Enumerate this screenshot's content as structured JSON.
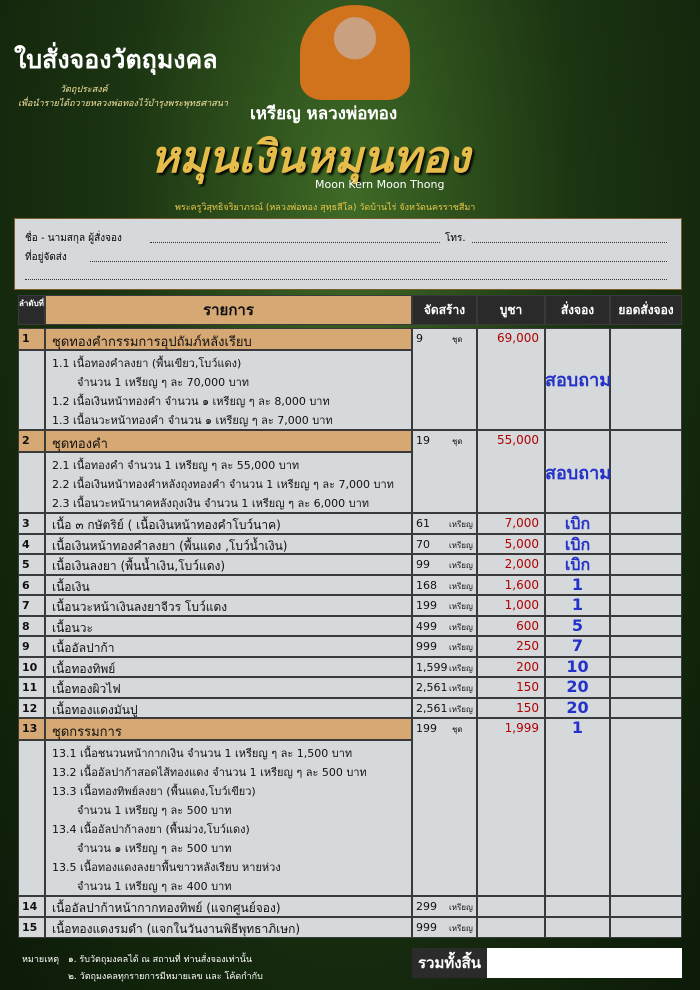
{
  "header": {
    "title": "ใบสั่งจองวัตถุมงคล",
    "purpose_label": "วัตถุประสงค์",
    "purpose": "เพื่อนำรายได้ถวายหลวงพ่อทองไว้บำรุงพระพุทธศาสนา",
    "coin_name": "เหรียญ หลวงพ่อทอง",
    "series_name": "หมุนเงินหมุนทอง",
    "english_name": "Moon Kern Moon Thong",
    "temple": "พระครูวิสุทธิจริยาภรณ์ (หลวงพ่อทอง สุทฺธสีโล) วัดบ้านไร่ จังหวัดนครราชสีมา"
  },
  "form": {
    "name_label": "ชื่อ - นามสกุล ผู้สั่งจอง",
    "phone_label": "โทร.",
    "address_label": "ที่อยู่จัดส่ง"
  },
  "table": {
    "columns": [
      "ลำดับที่",
      "รายการ",
      "จัดสร้าง",
      "บูชา",
      "สั่งจอง",
      "ยอดสั่งจอง"
    ],
    "rows": [
      {
        "no": "1",
        "name": "ชุดทองคำกรรมการอุปถัมภ์หลังเรียบ",
        "qty": "9",
        "unit": "ชุด",
        "price": "69,000",
        "order": "สอบถาม",
        "items": [
          "1.1 เนื้อทองคำลงยา (พื้นเขียว,โบว์แดง)",
          "จำนวน 1 เหรียญ ๆ ละ 70,000 บาท",
          "1.2 เนื้อเงินหน้าทองคำ จำนวน ๑ เหรียญ ๆ ละ 8,000 บาท",
          "1.3 เนื้อนวะหน้าทองคำ จำนวน ๑ เหรียญ ๆ ละ 7,000 บาท"
        ]
      },
      {
        "no": "2",
        "name": "ชุดทองคำ",
        "qty": "19",
        "unit": "ชุด",
        "price": "55,000",
        "order": "สอบถาม",
        "items": [
          "2.1 เนื้อทองคำ จำนวน 1 เหรียญ ๆ ละ 55,000 บาท",
          "2.2 เนื้อเงินหน้าทองคำหลังถุงทองคำ จำนวน 1 เหรียญ ๆ ละ 7,000 บาท",
          "2.3 เนื้อนวะหน้านาคหลังถุงเงิน จำนวน 1 เหรียญ ๆ ละ 6,000 บาท"
        ]
      },
      {
        "no": "3",
        "name": "เนื้อ ๓ กษัตริย์ ( เนื้อเงินหน้าทองคำโบว์นาค)",
        "qty": "61",
        "unit": "เหรียญ",
        "price": "7,000",
        "order": "เบิก"
      },
      {
        "no": "4",
        "name": "เนื้อเงินหน้าทองคำลงยา (พื้นแดง ,โบว์น้ำเงิน)",
        "qty": "70",
        "unit": "เหรียญ",
        "price": "5,000",
        "order": "เบิก"
      },
      {
        "no": "5",
        "name": "เนื้อเงินลงยา (พื้นน้ำเงิน,โบว์แดง)",
        "qty": "99",
        "unit": "เหรียญ",
        "price": "2,000",
        "order": "เบิก"
      },
      {
        "no": "6",
        "name": "เนื้อเงิน",
        "qty": "168",
        "unit": "เหรียญ",
        "price": "1,600",
        "order": "1"
      },
      {
        "no": "7",
        "name": "เนื้อนวะหน้าเงินลงยาจีวร โบว์แดง",
        "qty": "199",
        "unit": "เหรียญ",
        "price": "1,000",
        "order": "1"
      },
      {
        "no": "8",
        "name": "เนื้อนวะ",
        "qty": "499",
        "unit": "เหรียญ",
        "price": "600",
        "order": "5"
      },
      {
        "no": "9",
        "name": "เนื้ออัลปาก้า",
        "qty": "999",
        "unit": "เหรียญ",
        "price": "250",
        "order": "7"
      },
      {
        "no": "10",
        "name": "เนื้อทองทิพย์",
        "qty": "1,599",
        "unit": "เหรียญ",
        "price": "200",
        "order": "10"
      },
      {
        "no": "11",
        "name": "เนื้อทองผิวไฟ",
        "qty": "2,561",
        "unit": "เหรียญ",
        "price": "150",
        "order": "20"
      },
      {
        "no": "12",
        "name": "เนื้อทองแดงมันปู",
        "qty": "2,561",
        "unit": "เหรียญ",
        "price": "150",
        "order": "20"
      },
      {
        "no": "13",
        "name": "ชุดกรรมการ",
        "qty": "199",
        "unit": "ชุด",
        "price": "1,999",
        "order": "1",
        "items": [
          "13.1 เนื้อชนวนหน้ากากเงิน จำนวน 1 เหรียญ ๆ ละ 1,500 บาท",
          "13.2 เนื้ออัลปาก้าสอดไส้ทองแดง จำนวน 1 เหรียญ ๆ ละ 500 บาท",
          "13.3 เนื้อทองทิพย์ลงยา (พื้นแดง,โบว์เขียว)",
          "จำนวน 1 เหรียญ ๆ ละ 500 บาท",
          "13.4 เนื้ออัลปาก้าลงยา (พื้นม่วง,โบว์แดง)",
          "จำนวน ๑ เหรียญ ๆ ละ 500 บาท",
          "13.5 เนื้อทองแดงลงยาพื้นขาวหลังเรียบ หายห่วง",
          "จำนวน 1 เหรียญ ๆ ละ 400 บาท"
        ]
      },
      {
        "no": "14",
        "name": "เนื้ออัลปาก้าหน้ากากทองทิพย์ (แจกศูนย์จอง)",
        "qty": "299",
        "unit": "เหรียญ"
      },
      {
        "no": "15",
        "name": "เนื้อทองแดงรมดำ (แจกในวันงานพิธีพุทธาภิเษก)",
        "qty": "999",
        "unit": "เหรียญ"
      }
    ]
  },
  "footer": {
    "note_label": "หมายเหตุ",
    "notes": [
      "๑. รับวัตถุมงคลได้ ณ สถานที่ ท่านสั่งจองเท่านั้น",
      "๒. วัตถุมงคลทุกรายการมีหมายเลข และ โค้ดกำกับ"
    ],
    "total_label": "รวมทั้งสิ้น"
  }
}
